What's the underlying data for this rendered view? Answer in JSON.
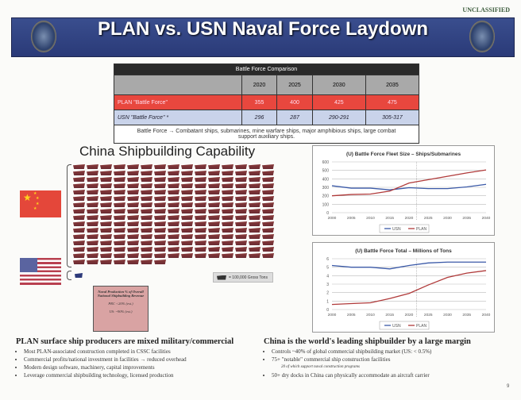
{
  "classification": "UNCLASSIFIED",
  "title": "PLAN vs. USN Naval Force Laydown",
  "table": {
    "caption": "Battle Force Comparison",
    "years": [
      "2020",
      "2025",
      "2030",
      "2035"
    ],
    "rows": [
      {
        "label": "PLAN \"Battle Force\"",
        "values": [
          "355",
          "400",
          "425",
          "475"
        ]
      },
      {
        "label": "USN \"Battle Force\" *",
        "values": [
          "296",
          "287",
          "290-291",
          "305-317"
        ]
      }
    ],
    "note": "Battle Force → Combatant ships, submarines, mine warfare ships, major amphibious ships, large combat support auxiliary ships."
  },
  "shipbuilding": {
    "title": "China Shipbuilding Capability",
    "china_ship_icons": 232,
    "us_ship_icons": 1,
    "scale_label": "= 100,000 Gross Tons",
    "box": [
      "Naval Production % of Overall National Shipbuilding Revenue",
      "PRC <20% (est.)",
      "US: ~90% (est.)"
    ]
  },
  "colors": {
    "usn": "#3b5aa8",
    "plan": "#b03a3a",
    "banner": "#2f4282"
  },
  "chart_data": [
    {
      "type": "line",
      "title": "(U) Battle Force Fleet Size – Ships/Submarines",
      "x": [
        "2000",
        "2005",
        "2010",
        "2015",
        "2020",
        "2025",
        "2030",
        "2035",
        "2040"
      ],
      "ylim": [
        0,
        600
      ],
      "yticks": [
        0,
        100,
        200,
        300,
        400,
        500,
        600
      ],
      "series": [
        {
          "name": "USN",
          "values": [
            318,
            290,
            290,
            270,
            295,
            285,
            285,
            305,
            335
          ]
        },
        {
          "name": "PLAN",
          "values": [
            200,
            215,
            220,
            255,
            350,
            390,
            430,
            470,
            505
          ]
        }
      ],
      "legend": "bottom",
      "grid": true
    },
    {
      "type": "line",
      "title": "(U) Battle Force Total – Millions of Tons",
      "x": [
        "2000",
        "2005",
        "2010",
        "2015",
        "2020",
        "2025",
        "2030",
        "2035",
        "2040"
      ],
      "ylim": [
        0,
        6
      ],
      "yticks": [
        0,
        1,
        2,
        3,
        4,
        5,
        6
      ],
      "series": [
        {
          "name": "USN",
          "values": [
            5.2,
            5.0,
            5.0,
            4.8,
            5.2,
            5.5,
            5.6,
            5.6,
            5.6
          ]
        },
        {
          "name": "PLAN",
          "values": [
            0.6,
            0.7,
            0.8,
            1.3,
            1.9,
            2.9,
            3.8,
            4.3,
            4.6
          ]
        }
      ],
      "legend": "bottom",
      "grid": true
    }
  ],
  "left_text": {
    "heading": "PLAN surface ship producers are mixed military/commercial",
    "bullets": [
      "Most PLAN-associated construction completed in CSSC facilities",
      "Commercial profits/national investment in facilities → reduced overhead",
      "Modern design software, machinery, capital improvements",
      "Leverage commercial shipbuilding technology, licensed production"
    ]
  },
  "right_text": {
    "heading": "China is the world's leading shipbuilder by a large margin",
    "bullets": [
      "Controls ~40% of global commercial shipbuilding market (US: < 0.5%)",
      "75+ \"notable\" commercial ship construction facilities",
      "20 of which support naval construction programs",
      "50+ dry docks in China can physically accommodate an aircraft carrier"
    ]
  },
  "page_number": "9"
}
